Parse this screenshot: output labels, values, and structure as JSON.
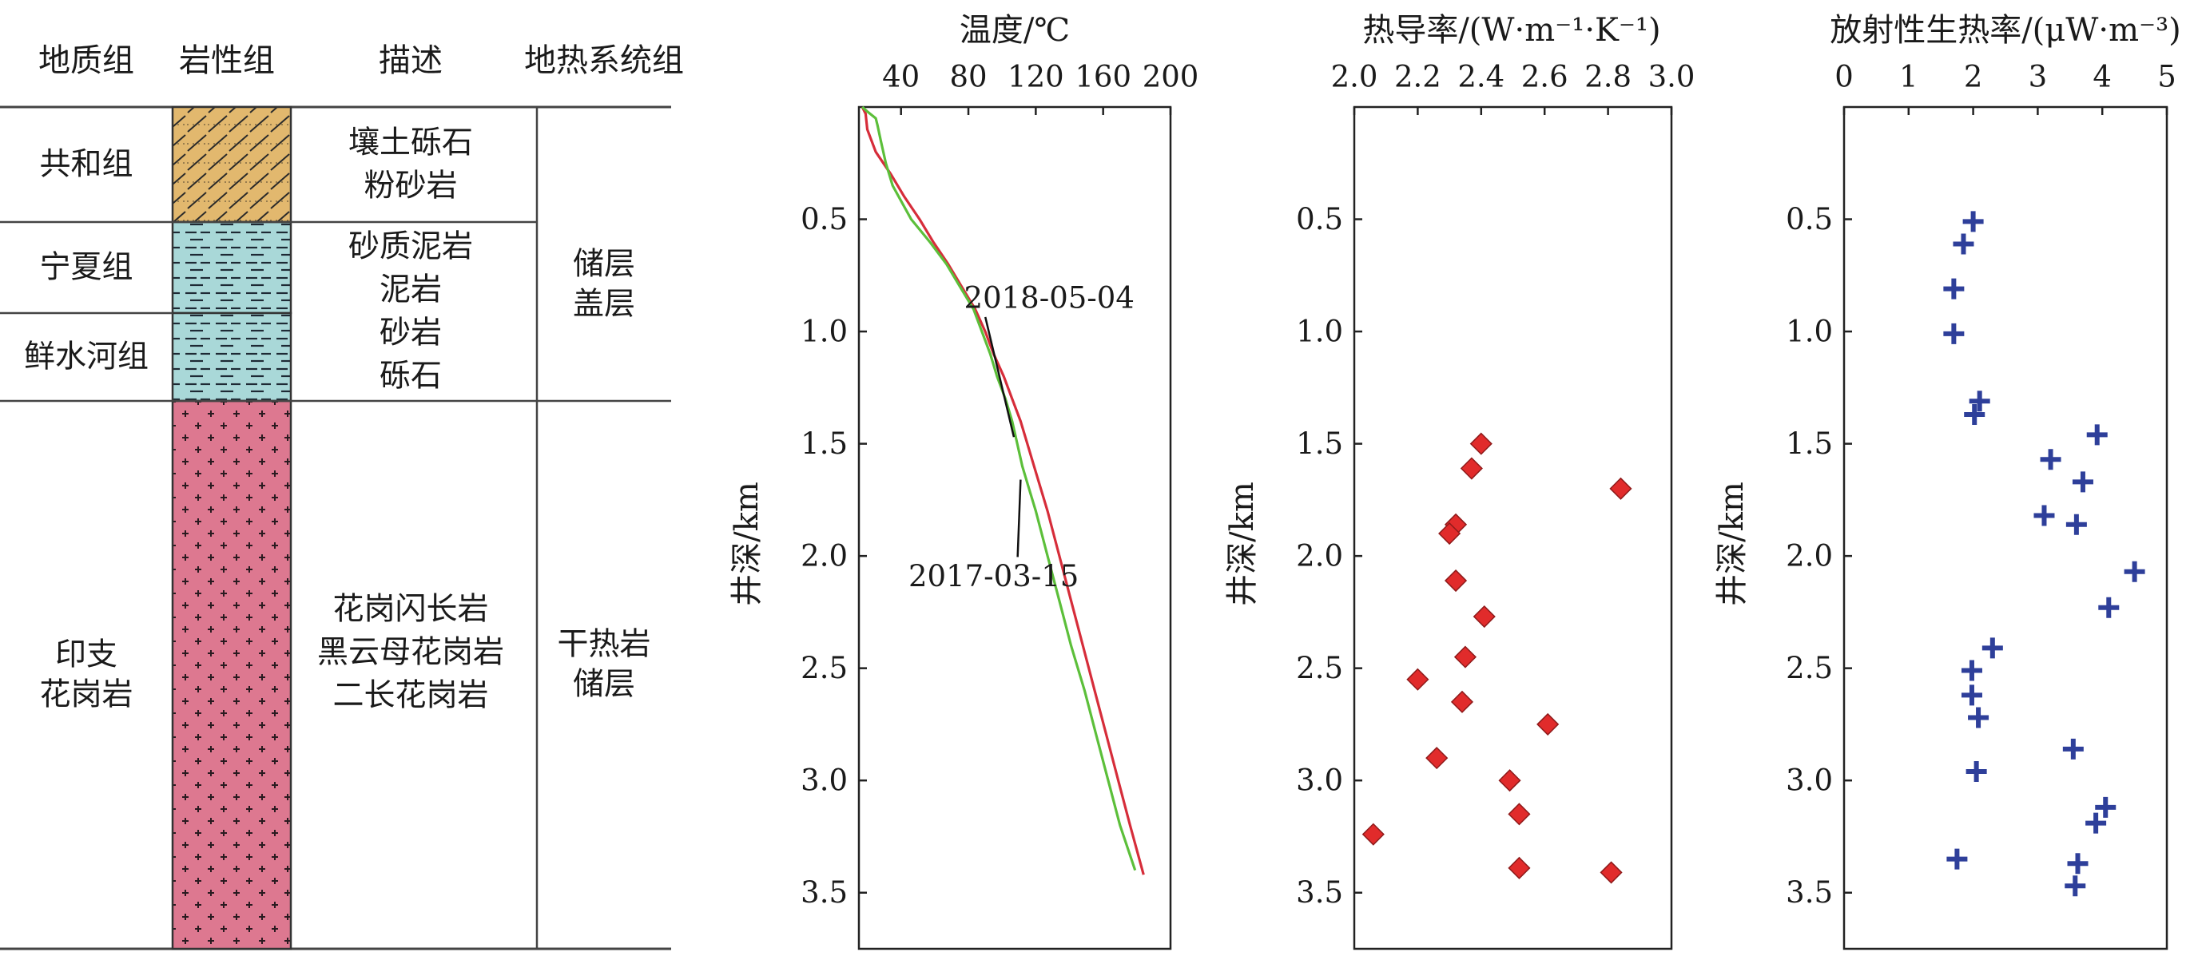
{
  "strat_column": {
    "headers": [
      "地质组",
      "岩性组",
      "描述",
      "地热系统组"
    ],
    "formations": [
      {
        "name_lines": [
          "共和组"
        ],
        "top_km": 0.0,
        "bottom_km": 0.5,
        "pattern": "sandstone-gravel",
        "color": "#e2b86e"
      },
      {
        "name_lines": [
          "宁夏组"
        ],
        "top_km": 0.5,
        "bottom_km": 0.9,
        "pattern": "mudstone",
        "color": "#a9d8d8"
      },
      {
        "name_lines": [
          "鲜水河组"
        ],
        "top_km": 0.9,
        "bottom_km": 1.3,
        "pattern": "mudstone",
        "color": "#a9d8d8"
      },
      {
        "name_lines": [
          "印支",
          "花岗岩"
        ],
        "top_km": 1.3,
        "bottom_km": 3.6,
        "pattern": "granite",
        "color": "#dd7890"
      }
    ],
    "descriptions": [
      {
        "lines": [
          "壤土砾石",
          "粉砂岩"
        ],
        "top_km": 0.0,
        "bottom_km": 0.5
      },
      {
        "lines": [
          "砂质泥岩",
          "泥岩",
          "砂岩",
          "砾石"
        ],
        "top_km": 0.5,
        "bottom_km": 1.3
      },
      {
        "lines": [
          "花岗闪长岩",
          "黑云母花岗岩",
          "二长花岗岩"
        ],
        "top_km": 1.3,
        "bottom_km": 3.6
      }
    ],
    "systems": [
      {
        "lines": [
          "储层",
          "盖层"
        ],
        "top_km": 0.0,
        "bottom_km": 1.3
      },
      {
        "lines": [
          "干热岩",
          "储层"
        ],
        "top_km": 1.3,
        "bottom_km": 3.6
      }
    ]
  },
  "chart_data": [
    {
      "type": "line",
      "xlabel": "温度/℃",
      "ylabel": "井深/km",
      "xlim": [
        15,
        200
      ],
      "ylim": [
        3.75,
        0
      ],
      "xticks": [
        40,
        80,
        120,
        160,
        200
      ],
      "yticks": [
        0.5,
        1.0,
        1.5,
        2.0,
        2.5,
        3.0,
        3.5
      ],
      "ytick_labels": [
        "0.5",
        "1.0",
        "1.5",
        "2.0",
        "2.5",
        "3.0",
        "3.5"
      ],
      "series": [
        {
          "name": "2018-05-04",
          "color": "#d62d3a",
          "depth": [
            0.0,
            0.03,
            0.1,
            0.2,
            0.3,
            0.4,
            0.5,
            0.6,
            0.7,
            0.8,
            0.9,
            1.0,
            1.1,
            1.2,
            1.3,
            1.4,
            1.5,
            1.6,
            1.8,
            2.0,
            2.2,
            2.4,
            2.6,
            2.8,
            3.0,
            3.2,
            3.42
          ],
          "temp": [
            17,
            19,
            20,
            25,
            34,
            42,
            51,
            59,
            68,
            76,
            84,
            90,
            95,
            101,
            106,
            111,
            115,
            119,
            127,
            134,
            141,
            148,
            155,
            162,
            169,
            176,
            184
          ]
        },
        {
          "name": "2017-03-15",
          "color": "#5cbf3a",
          "depth": [
            0.0,
            0.02,
            0.05,
            0.08,
            0.15,
            0.25,
            0.35,
            0.5,
            0.6,
            0.7,
            0.8,
            0.9,
            1.0,
            1.1,
            1.2,
            1.3,
            1.4,
            1.5,
            1.6,
            1.7,
            1.8,
            2.0,
            2.2,
            2.4,
            2.6,
            2.8,
            3.0,
            3.2,
            3.4
          ],
          "temp": [
            17,
            20,
            25,
            26,
            28,
            31,
            35,
            46,
            57,
            67,
            75,
            83,
            88,
            93,
            97,
            102,
            106,
            109,
            112,
            116,
            120,
            127,
            134,
            141,
            149,
            156,
            163,
            170,
            179
          ]
        }
      ],
      "annotations": [
        {
          "text": "2018-05-04",
          "x": 128,
          "y": 0.85,
          "target_x": 107,
          "target_y": 1.47
        },
        {
          "text": "2017-03-15",
          "x": 95,
          "y": 2.09,
          "target_x": 111,
          "target_y": 1.66
        }
      ]
    },
    {
      "type": "scatter",
      "xlabel": "热导率/(W·m⁻¹·K⁻¹)",
      "ylabel": "井深/km",
      "xlim": [
        2.0,
        3.0
      ],
      "ylim": [
        3.75,
        0
      ],
      "xticks": [
        2.0,
        2.2,
        2.4,
        2.6,
        2.8,
        3.0
      ],
      "xtick_labels": [
        "2.0",
        "2.2",
        "2.4",
        "2.6",
        "2.8",
        "3.0"
      ],
      "yticks": [
        0.5,
        1.0,
        1.5,
        2.0,
        2.5,
        3.0,
        3.5
      ],
      "ytick_labels": [
        "0.5",
        "1.0",
        "1.5",
        "2.0",
        "2.5",
        "3.0",
        "3.5"
      ],
      "marker": "diamond",
      "color": "#e12b2b",
      "points": [
        {
          "x": 2.4,
          "y": 1.5
        },
        {
          "x": 2.37,
          "y": 1.61
        },
        {
          "x": 2.84,
          "y": 1.7
        },
        {
          "x": 2.32,
          "y": 1.86
        },
        {
          "x": 2.3,
          "y": 1.9
        },
        {
          "x": 2.32,
          "y": 2.11
        },
        {
          "x": 2.41,
          "y": 2.27
        },
        {
          "x": 2.35,
          "y": 2.45
        },
        {
          "x": 2.2,
          "y": 2.55
        },
        {
          "x": 2.34,
          "y": 2.65
        },
        {
          "x": 2.61,
          "y": 2.75
        },
        {
          "x": 2.26,
          "y": 2.9
        },
        {
          "x": 2.49,
          "y": 3.0
        },
        {
          "x": 2.52,
          "y": 3.15
        },
        {
          "x": 2.06,
          "y": 3.24
        },
        {
          "x": 2.52,
          "y": 3.39
        },
        {
          "x": 2.81,
          "y": 3.41
        }
      ]
    },
    {
      "type": "scatter",
      "xlabel": "放射性生热率/(μW·m⁻³)",
      "ylabel": "井深/km",
      "xlim": [
        0,
        5
      ],
      "ylim": [
        3.75,
        0
      ],
      "xticks": [
        0,
        1,
        2,
        3,
        4,
        5
      ],
      "xtick_labels": [
        "0",
        "1",
        "2",
        "3",
        "4",
        "5"
      ],
      "yticks": [
        0.5,
        1.0,
        1.5,
        2.0,
        2.5,
        3.0,
        3.5
      ],
      "ytick_labels": [
        "0.5",
        "1.0",
        "1.5",
        "2.0",
        "2.5",
        "3.0",
        "3.5"
      ],
      "marker": "plus",
      "color": "#2e3f9a",
      "points": [
        {
          "x": 2.0,
          "y": 0.51
        },
        {
          "x": 1.85,
          "y": 0.61
        },
        {
          "x": 1.7,
          "y": 0.81
        },
        {
          "x": 1.7,
          "y": 1.01
        },
        {
          "x": 2.1,
          "y": 1.31
        },
        {
          "x": 2.02,
          "y": 1.37
        },
        {
          "x": 3.92,
          "y": 1.46
        },
        {
          "x": 3.2,
          "y": 1.57
        },
        {
          "x": 3.7,
          "y": 1.67
        },
        {
          "x": 3.1,
          "y": 1.82
        },
        {
          "x": 3.6,
          "y": 1.86
        },
        {
          "x": 4.5,
          "y": 2.07
        },
        {
          "x": 4.1,
          "y": 2.23
        },
        {
          "x": 2.3,
          "y": 2.41
        },
        {
          "x": 1.98,
          "y": 2.51
        },
        {
          "x": 1.98,
          "y": 2.62
        },
        {
          "x": 2.08,
          "y": 2.72
        },
        {
          "x": 3.55,
          "y": 2.86
        },
        {
          "x": 2.05,
          "y": 2.96
        },
        {
          "x": 4.05,
          "y": 3.12
        },
        {
          "x": 3.9,
          "y": 3.19
        },
        {
          "x": 1.75,
          "y": 3.35
        },
        {
          "x": 3.62,
          "y": 3.37
        },
        {
          "x": 3.58,
          "y": 3.47
        }
      ]
    }
  ]
}
